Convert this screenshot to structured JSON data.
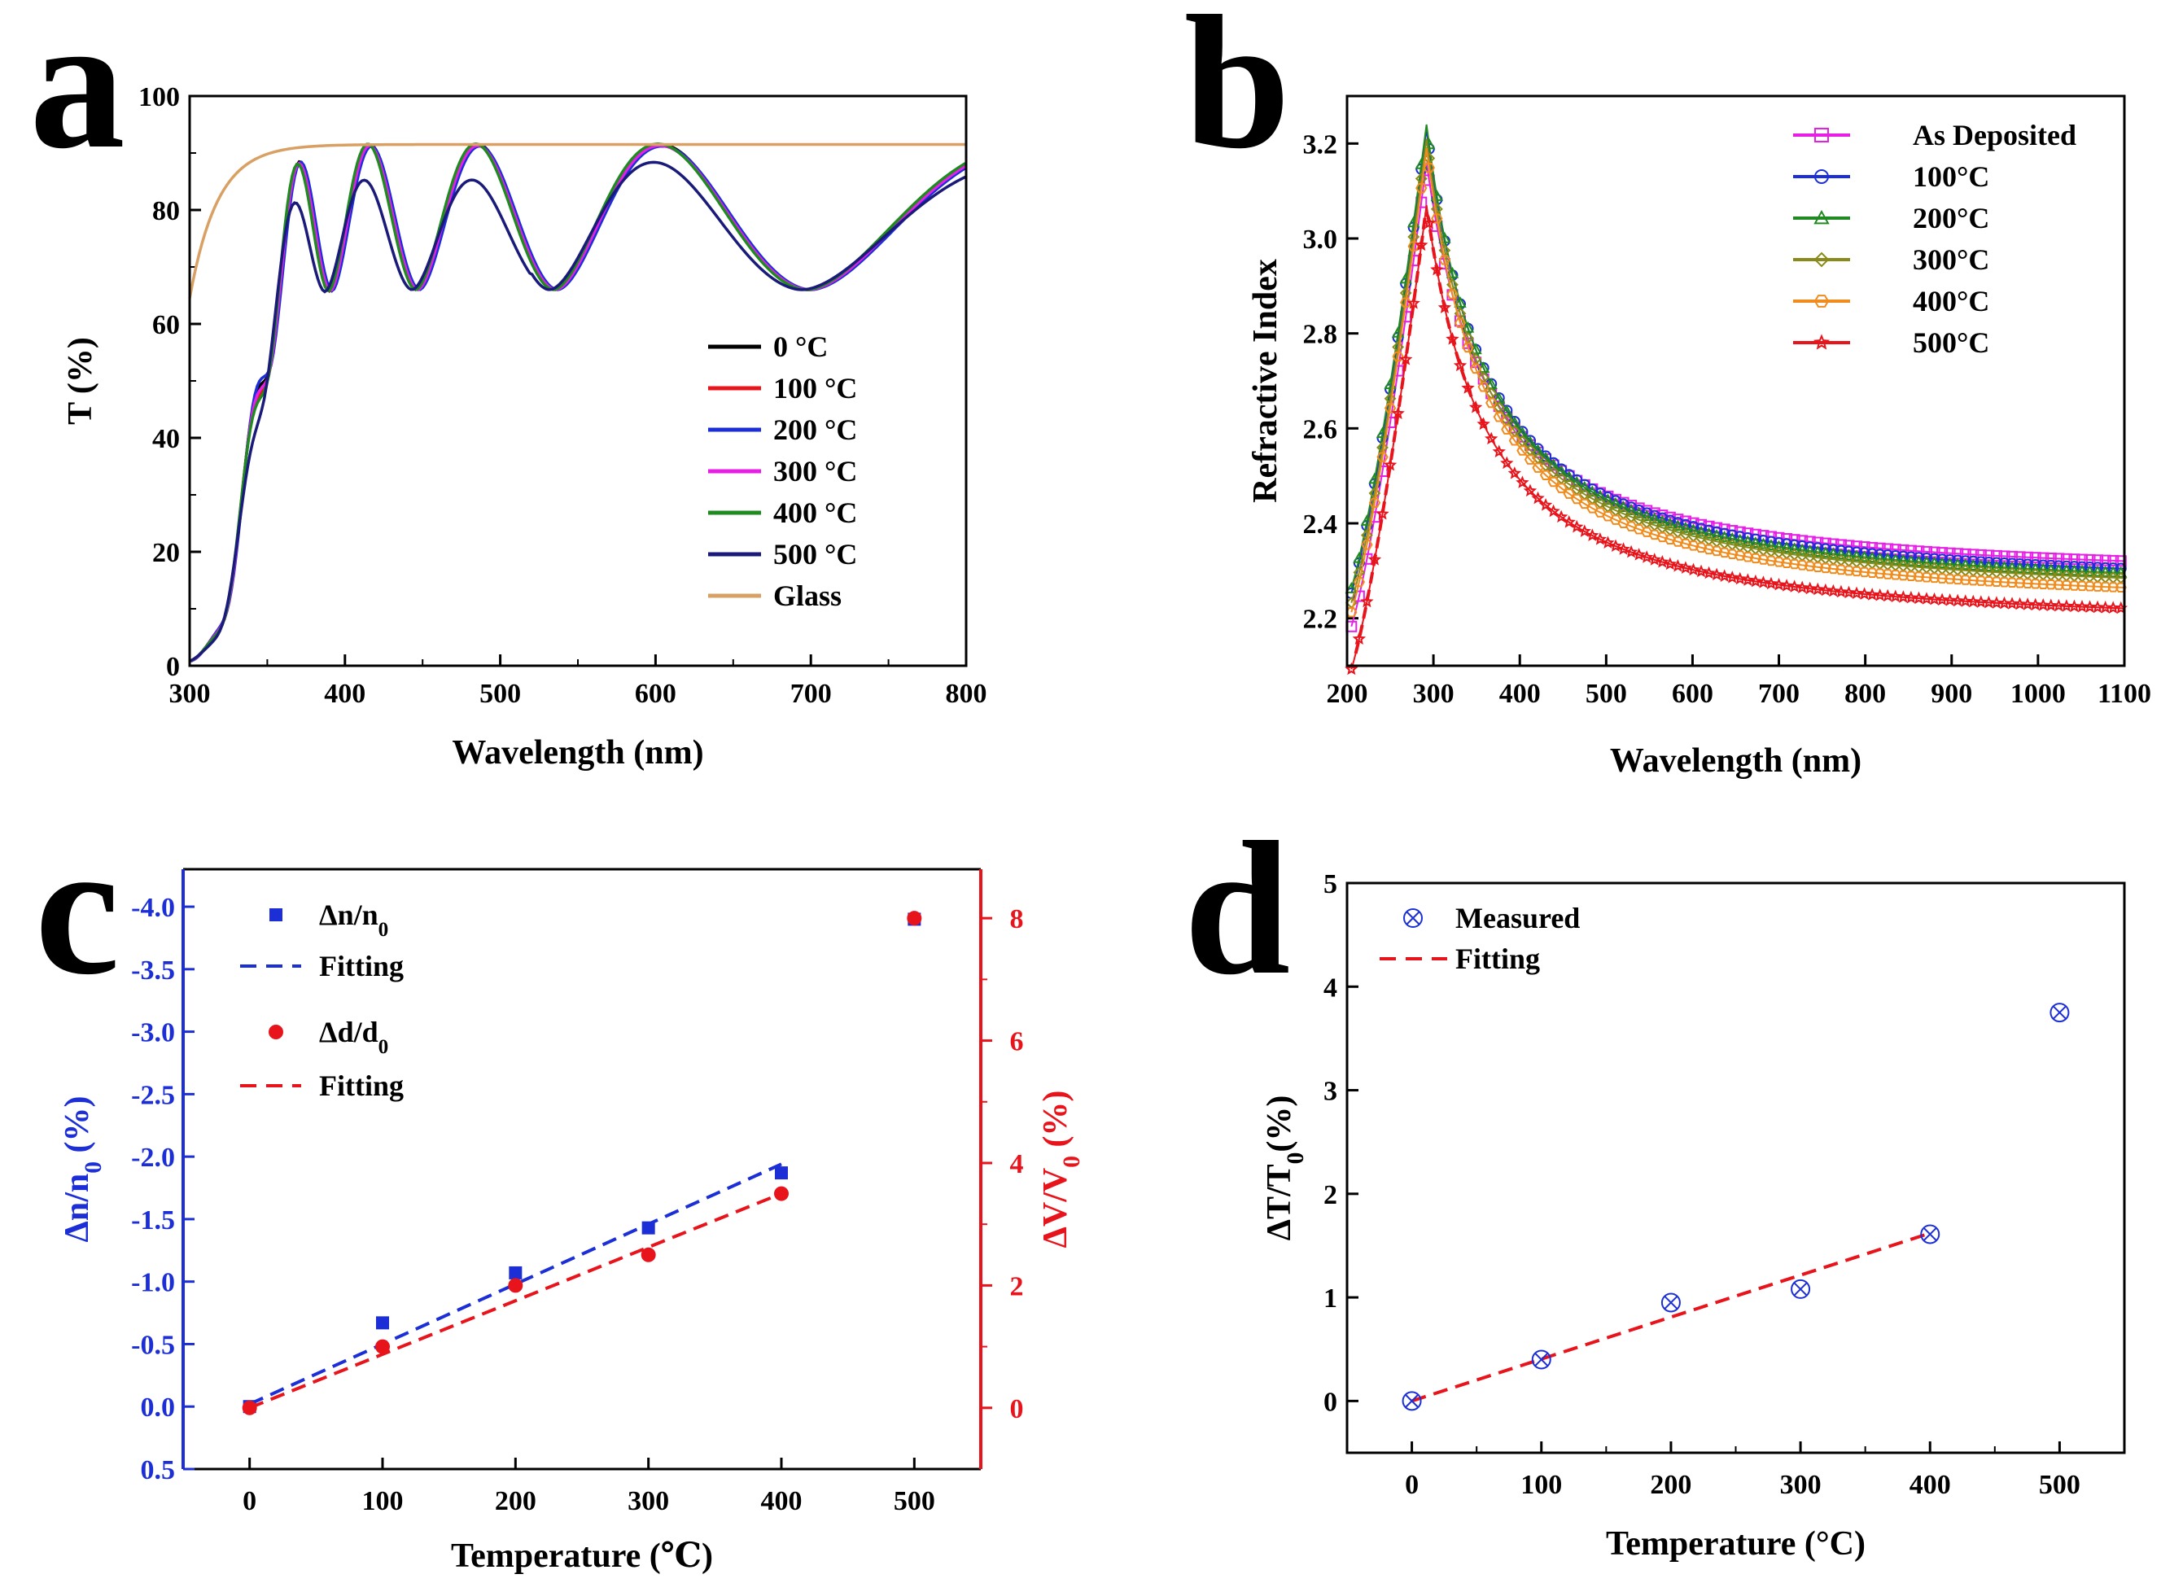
{
  "chart_data": [
    {
      "panel": "a",
      "type": "line",
      "title": "",
      "xlabel": "Wavelength (nm)",
      "ylabel": "T (%)",
      "xlim": [
        300,
        800
      ],
      "ylim": [
        0,
        100
      ],
      "xticks": [
        300,
        400,
        500,
        600,
        700,
        800
      ],
      "yticks": [
        0,
        20,
        40,
        60,
        80,
        100
      ],
      "legend_position": "bottom-right",
      "series": [
        {
          "name": "0 °C",
          "color": "#000000"
        },
        {
          "name": "100 °C",
          "color": "#e8141c"
        },
        {
          "name": "200 °C",
          "color": "#1c2fd6"
        },
        {
          "name": "300 °C",
          "color": "#e61ee6"
        },
        {
          "name": "400 °C",
          "color": "#1f8a1f"
        },
        {
          "name": "500 °C",
          "color": "#1a1a7a"
        },
        {
          "name": "Glass",
          "color": "#d9a064"
        }
      ]
    },
    {
      "panel": "b",
      "type": "line",
      "title": "",
      "xlabel": "Wavelength (nm)",
      "ylabel": "Refractive Index",
      "xlim": [
        200,
        1100
      ],
      "ylim": [
        2.1,
        3.3
      ],
      "xticks": [
        200,
        300,
        400,
        500,
        600,
        700,
        800,
        900,
        1000,
        1100
      ],
      "yticks": [
        2.2,
        2.4,
        2.6,
        2.8,
        3.0,
        3.2
      ],
      "legend_position": "top-right",
      "series": [
        {
          "name": "As Deposited",
          "color": "#e61ee6",
          "marker": "square",
          "peak": 3.16,
          "tail": 2.28
        },
        {
          "name": "100°C",
          "color": "#1c2fd6",
          "marker": "circle",
          "peak": 3.23,
          "tail": 2.26
        },
        {
          "name": "200°C",
          "color": "#1f8a1f",
          "marker": "triangle",
          "peak": 3.24,
          "tail": 2.25
        },
        {
          "name": "300°C",
          "color": "#8a8a1a",
          "marker": "diamond",
          "peak": 3.21,
          "tail": 2.24
        },
        {
          "name": "400°C",
          "color": "#f08c1e",
          "marker": "hexagon",
          "peak": 3.19,
          "tail": 2.22
        },
        {
          "name": "500°C",
          "color": "#e8141c",
          "marker": "star",
          "peak": 3.07,
          "tail": 2.18
        }
      ]
    },
    {
      "panel": "c",
      "type": "scatter",
      "title": "",
      "xlabel": "Temperature (℃)",
      "ylabel_left": "Δn/n0 (%)",
      "ylabel_right": "ΔV/V0 (%)",
      "xlim": [
        -50,
        550
      ],
      "ylim_left": [
        0.5,
        -4.3
      ],
      "ylim_right": [
        -1,
        8.8
      ],
      "xticks": [
        0,
        100,
        200,
        300,
        400,
        500
      ],
      "yticks_left": [
        "-4.0",
        "-3.5",
        "-3.0",
        "-2.5",
        "-2.0",
        "-1.5",
        "-1.0",
        "-0.5",
        "0.0",
        "0.5"
      ],
      "yticks_right": [
        0,
        2,
        4,
        6,
        8
      ],
      "legend_position": "top-left",
      "series": [
        {
          "name": "Δn/n0",
          "axis": "left",
          "color": "#1c2fd6",
          "marker": "square",
          "x": [
            0,
            100,
            200,
            300,
            400,
            500
          ],
          "values": [
            0.0,
            -0.67,
            -1.07,
            -1.43,
            -1.87,
            -3.9
          ]
        },
        {
          "name": "Fitting",
          "axis": "left",
          "color": "#1c2fd6",
          "style": "dashed",
          "x": [
            0,
            400
          ],
          "values": [
            -0.02,
            -1.94
          ]
        },
        {
          "name": "Δd/d0",
          "axis": "right",
          "color": "#e8141c",
          "marker": "circle",
          "x": [
            0,
            100,
            200,
            300,
            400,
            500
          ],
          "values": [
            0.0,
            1.0,
            2.0,
            2.5,
            3.5,
            8.0
          ]
        },
        {
          "name": "Fitting",
          "axis": "right",
          "color": "#e8141c",
          "style": "dashed",
          "x": [
            0,
            400
          ],
          "values": [
            0.0,
            3.5
          ]
        }
      ]
    },
    {
      "panel": "d",
      "type": "scatter",
      "title": "",
      "xlabel": "Temperature (°C)",
      "ylabel": "ΔT/T0(%)",
      "xlim": [
        -50,
        550
      ],
      "ylim": [
        -0.5,
        5
      ],
      "xticks": [
        0,
        100,
        200,
        300,
        400,
        500
      ],
      "yticks": [
        0,
        1,
        2,
        3,
        4,
        5
      ],
      "legend_position": "top-left",
      "series": [
        {
          "name": "Measured",
          "color": "#1c2fd6",
          "marker": "circle-x",
          "x": [
            0,
            100,
            200,
            300,
            400,
            500
          ],
          "values": [
            0.0,
            0.4,
            0.95,
            1.08,
            1.61,
            3.75
          ]
        },
        {
          "name": "Fitting",
          "color": "#e8141c",
          "style": "dashed",
          "x": [
            0,
            400
          ],
          "values": [
            0.0,
            1.62
          ]
        }
      ]
    }
  ]
}
